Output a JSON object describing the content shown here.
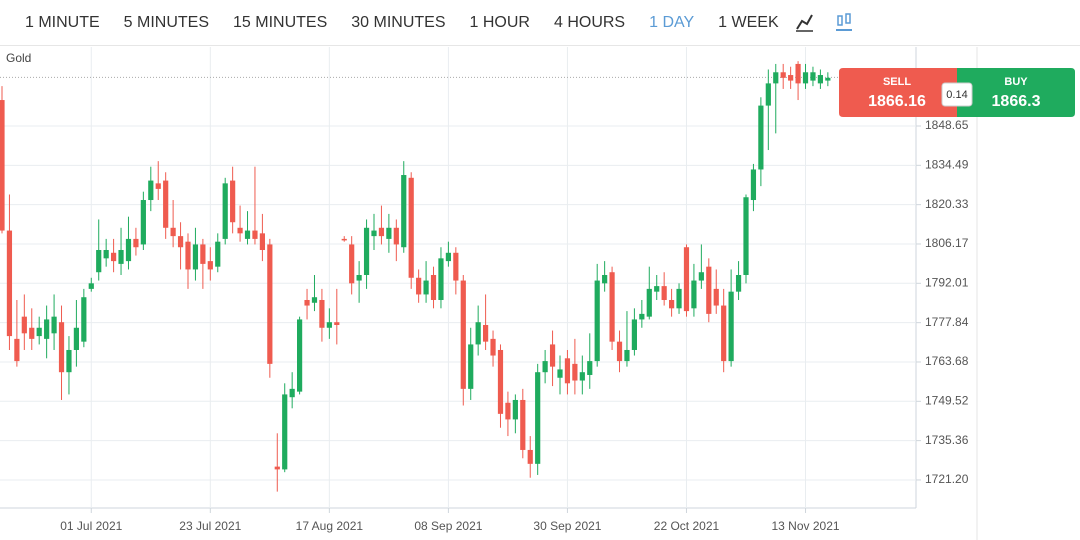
{
  "toolbar": {
    "intervals": [
      "1 MINUTE",
      "5 MINUTES",
      "15 MINUTES",
      "30 MINUTES",
      "1 HOUR",
      "4 HOURS",
      "1 DAY",
      "1 WEEK"
    ],
    "active": 6
  },
  "trade": {
    "sell": {
      "label": "SELL",
      "price": 1866.16
    },
    "buy": {
      "label": "BUY",
      "price": 1866.3
    },
    "spread": 0.14
  },
  "chart_data": {
    "type": "candlestick",
    "title": "Gold",
    "categories": [
      null,
      null,
      null,
      null,
      null,
      null,
      null,
      null,
      null,
      null,
      null,
      null,
      "01 Jul 2021",
      null,
      null,
      null,
      null,
      null,
      null,
      null,
      null,
      null,
      null,
      null,
      null,
      null,
      null,
      null,
      "23 Jul 2021",
      null,
      null,
      null,
      null,
      null,
      null,
      null,
      null,
      null,
      null,
      null,
      null,
      null,
      null,
      null,
      "17 Aug 2021",
      null,
      null,
      null,
      null,
      null,
      null,
      null,
      null,
      null,
      null,
      null,
      null,
      null,
      null,
      null,
      "08 Sep 2021",
      null,
      null,
      null,
      null,
      null,
      null,
      null,
      null,
      null,
      null,
      null,
      null,
      null,
      null,
      null,
      "30 Sep 2021",
      null,
      null,
      null,
      null,
      null,
      null,
      null,
      null,
      null,
      null,
      null,
      null,
      null,
      null,
      null,
      "22 Oct 2021",
      null,
      null,
      null,
      null,
      null,
      null,
      null,
      null,
      null,
      null,
      null,
      null,
      null,
      null,
      null,
      "13 Nov 2021",
      null,
      null,
      null
    ],
    "open": [
      1858,
      1811,
      1772,
      1780,
      1776,
      1773,
      1772,
      1774,
      1778,
      1760,
      1768,
      1771,
      1790,
      1796,
      1801,
      1803,
      1799,
      1800,
      1808,
      1806,
      1822,
      1828,
      1829,
      1812,
      1809,
      1807,
      1797,
      1806,
      1800,
      1798,
      1808,
      1829,
      1812,
      1808,
      1811,
      1810,
      1806,
      1726,
      1725,
      1751,
      1753,
      1786,
      1785,
      1786,
      1776,
      1778,
      1808,
      1806,
      1793,
      1795,
      1809,
      1812,
      1808,
      1812,
      1805,
      1830,
      1794,
      1788,
      1795,
      1786,
      1800,
      1803,
      1793,
      1754,
      1770,
      1777,
      1772,
      1768,
      1749,
      1743,
      1750,
      1732,
      1727,
      1760,
      1770,
      1758,
      1765,
      1763,
      1757,
      1759,
      1764,
      1792,
      1796,
      1771,
      1764,
      1768,
      1779,
      1780,
      1789,
      1791,
      1786,
      1783,
      1805,
      1783,
      1793,
      1798,
      1790,
      1784,
      1764,
      1789,
      1795,
      1822,
      1833,
      1856,
      1864,
      1868,
      1867,
      1871,
      1864,
      1865,
      1864,
      1865
    ],
    "high": [
      1863,
      1824,
      1786,
      1788,
      1783,
      1780,
      1784,
      1788,
      1784,
      1773,
      1786,
      1790,
      1794,
      1815,
      1808,
      1808,
      1812,
      1816,
      1812,
      1825,
      1834,
      1836,
      1832,
      1822,
      1814,
      1810,
      1812,
      1808,
      1805,
      1810,
      1830,
      1834,
      1820,
      1818,
      1834,
      1817,
      1808,
      1738,
      1756,
      1760,
      1780,
      1790,
      1795,
      1790,
      1783,
      1790,
      1809,
      1809,
      1800,
      1815,
      1817,
      1820,
      1817,
      1815,
      1836,
      1832,
      1797,
      1800,
      1798,
      1805,
      1807,
      1805,
      1795,
      1776,
      1784,
      1788,
      1775,
      1770,
      1753,
      1752,
      1754,
      1737,
      1763,
      1768,
      1775,
      1766,
      1768,
      1772,
      1766,
      1774,
      1799,
      1800,
      1798,
      1775,
      1782,
      1783,
      1786,
      1798,
      1795,
      1796,
      1790,
      1792,
      1806,
      1799,
      1806,
      1801,
      1797,
      1790,
      1797,
      1800,
      1824,
      1835,
      1859,
      1869,
      1871,
      1871,
      1870,
      1872,
      1871,
      1870,
      1869,
      1868
    ],
    "low": [
      1810,
      1768,
      1762,
      1768,
      1768,
      1770,
      1765,
      1768,
      1750,
      1752,
      1762,
      1769,
      1789,
      1793,
      1798,
      1796,
      1795,
      1797,
      1802,
      1804,
      1818,
      1822,
      1808,
      1805,
      1797,
      1790,
      1793,
      1790,
      1793,
      1796,
      1806,
      1810,
      1807,
      1806,
      1806,
      1800,
      1758,
      1717,
      1724,
      1747,
      1752,
      1779,
      1782,
      1771,
      1772,
      1770,
      1807,
      1788,
      1785,
      1790,
      1804,
      1806,
      1803,
      1800,
      1803,
      1790,
      1785,
      1785,
      1783,
      1783,
      1798,
      1788,
      1748,
      1750,
      1766,
      1768,
      1762,
      1740,
      1737,
      1738,
      1729,
      1722,
      1723,
      1756,
      1755,
      1752,
      1752,
      1752,
      1752,
      1754,
      1762,
      1789,
      1768,
      1760,
      1762,
      1766,
      1776,
      1779,
      1786,
      1784,
      1780,
      1781,
      1780,
      1780,
      1790,
      1778,
      1781,
      1760,
      1762,
      1786,
      1792,
      1818,
      1827,
      1840,
      1846,
      1862,
      1862,
      1858,
      1862,
      1863,
      1862,
      1863
    ],
    "close": [
      1811,
      1773,
      1764,
      1774,
      1772,
      1776,
      1779,
      1780,
      1760,
      1768,
      1776,
      1787,
      1792,
      1804,
      1804,
      1800,
      1804,
      1808,
      1805,
      1822,
      1829,
      1826,
      1812,
      1809,
      1805,
      1797,
      1806,
      1799,
      1797,
      1807,
      1828,
      1814,
      1810,
      1811,
      1808,
      1804,
      1763,
      1725,
      1752,
      1754,
      1779,
      1784,
      1787,
      1776,
      1778,
      1777,
      1807.6,
      1792,
      1795,
      1812,
      1811,
      1809,
      1812,
      1806,
      1831,
      1794,
      1788,
      1793,
      1786,
      1801,
      1803,
      1793,
      1754,
      1770,
      1778,
      1771,
      1766,
      1745,
      1743,
      1750,
      1732,
      1727,
      1760,
      1764,
      1762,
      1761,
      1756,
      1757,
      1760,
      1764,
      1793,
      1795,
      1771,
      1764,
      1768,
      1779,
      1781,
      1790,
      1791,
      1786,
      1783,
      1790,
      1782,
      1793,
      1796,
      1781,
      1784,
      1764,
      1789,
      1795,
      1823,
      1833,
      1856,
      1864,
      1868,
      1866,
      1865,
      1864,
      1868,
      1868,
      1867,
      1866
    ],
    "up_color": "#1fab5e",
    "down_color": "#ef5b4f",
    "ylim": [
      1711.1,
      1877.1
    ],
    "yticks": [
      {
        "value": 1721.2,
        "label": "1721.20"
      },
      1735.36,
      1749.52,
      1763.68,
      1777.84,
      1792.01,
      1806.17,
      1820.33,
      1834.49,
      1848.65
    ],
    "grid": true
  }
}
